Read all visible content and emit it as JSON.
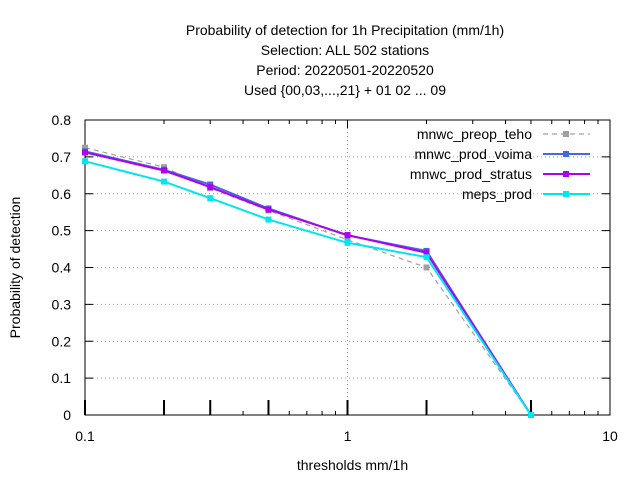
{
  "chart_data": {
    "type": "line",
    "title": [
      "Probability of detection  for 1h Precipitation (mm/1h)",
      "Selection: ALL    502 stations",
      "Period: 20220501-20220520",
      "Used {00,03,...,21} + 01 02 ... 09"
    ],
    "xlabel": "thresholds mm/1h",
    "ylabel": "Probability of detection",
    "xscale": "log",
    "xlim": [
      0.1,
      10
    ],
    "ylim": [
      0,
      0.8
    ],
    "grid": true,
    "legend_position": "top-right",
    "xticks": [
      {
        "value": 0.1,
        "label": "0.1"
      },
      {
        "value": 1,
        "label": "1"
      },
      {
        "value": 10,
        "label": "10"
      }
    ],
    "yticks": [
      {
        "value": 0,
        "label": "0"
      },
      {
        "value": 0.1,
        "label": "0.1"
      },
      {
        "value": 0.2,
        "label": "0.2"
      },
      {
        "value": 0.3,
        "label": "0.3"
      },
      {
        "value": 0.4,
        "label": "0.4"
      },
      {
        "value": 0.5,
        "label": "0.5"
      },
      {
        "value": 0.6,
        "label": "0.6"
      },
      {
        "value": 0.7,
        "label": "0.7"
      },
      {
        "value": 0.8,
        "label": "0.8"
      }
    ],
    "bottom_marks_x": [
      0.1,
      0.2,
      0.3,
      0.5,
      1,
      2,
      5
    ],
    "series": [
      {
        "name": "mnwc_preop_teho",
        "color": "#a0a0a0",
        "dash": true,
        "x": [
          0.1,
          0.2,
          0.3,
          0.5,
          1,
          2,
          5
        ],
        "y": [
          0.725,
          0.672,
          0.615,
          0.555,
          0.475,
          0.4,
          0.0
        ]
      },
      {
        "name": "mnwc_prod_voima",
        "color": "#4169e1",
        "dash": false,
        "x": [
          0.1,
          0.2,
          0.3,
          0.5,
          1,
          2,
          5
        ],
        "y": [
          0.715,
          0.665,
          0.625,
          0.56,
          0.487,
          0.445,
          0.0
        ]
      },
      {
        "name": "mnwc_prod_stratus",
        "color": "#b000f0",
        "dash": false,
        "x": [
          0.1,
          0.2,
          0.3,
          0.5,
          1,
          2,
          5
        ],
        "y": [
          0.712,
          0.663,
          0.618,
          0.557,
          0.488,
          0.44,
          0.0
        ]
      },
      {
        "name": "meps_prod",
        "color": "#00e5ee",
        "dash": false,
        "x": [
          0.1,
          0.2,
          0.3,
          0.5,
          1,
          2,
          5
        ],
        "y": [
          0.688,
          0.633,
          0.588,
          0.53,
          0.467,
          0.428,
          0.0
        ]
      }
    ]
  }
}
